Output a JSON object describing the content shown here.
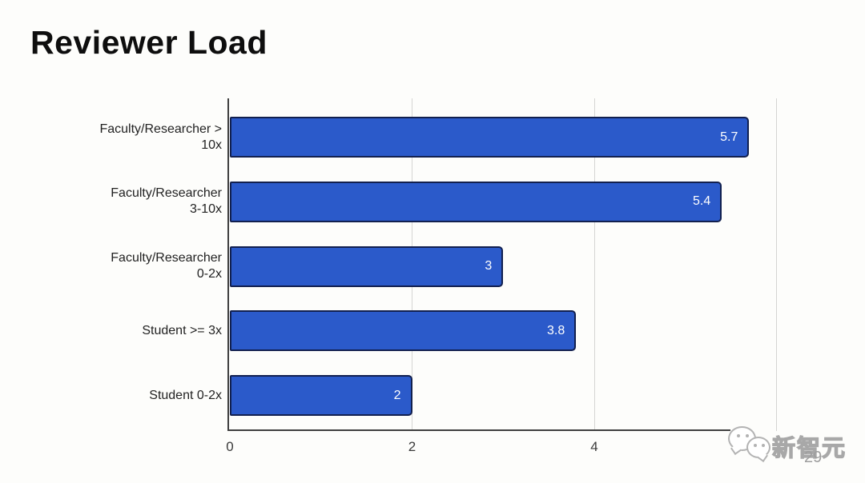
{
  "page": {
    "title": "Reviewer Load",
    "page_number": "29",
    "watermark_text": "新智元"
  },
  "chart_data": {
    "type": "bar",
    "orientation": "horizontal",
    "title": "Reviewer Load",
    "xlabel": "",
    "ylabel": "",
    "categories": [
      "Faculty/Researcher > 10x",
      "Faculty/Researcher 3-10x",
      "Faculty/Researcher 0-2x",
      "Student >= 3x",
      "Student 0-2x"
    ],
    "category_label_lines": [
      [
        "Faculty/Researcher >",
        "10x"
      ],
      [
        "Faculty/Researcher",
        "3-10x"
      ],
      [
        "Faculty/Researcher",
        "0-2x"
      ],
      [
        "Student >= 3x"
      ],
      [
        "Student 0-2x"
      ]
    ],
    "values": [
      5.7,
      5.4,
      3,
      3.8,
      2
    ],
    "value_labels": [
      "5.7",
      "5.4",
      "3",
      "3.8",
      "2"
    ],
    "xlim": [
      0,
      6.4
    ],
    "x_ticks_visible": [
      "0",
      "2",
      "4"
    ],
    "x_tick_values": [
      0,
      2,
      4
    ],
    "gridline_values": [
      2,
      4,
      6
    ],
    "grid": true,
    "legend": false,
    "colors": {
      "bar_fill": "#2b5aca",
      "bar_border": "#12204f",
      "value_label": "#ffffff",
      "gridline": "#d5d5d3",
      "axis": "#3f3f3f",
      "page_number": "#9e9e9e"
    }
  }
}
